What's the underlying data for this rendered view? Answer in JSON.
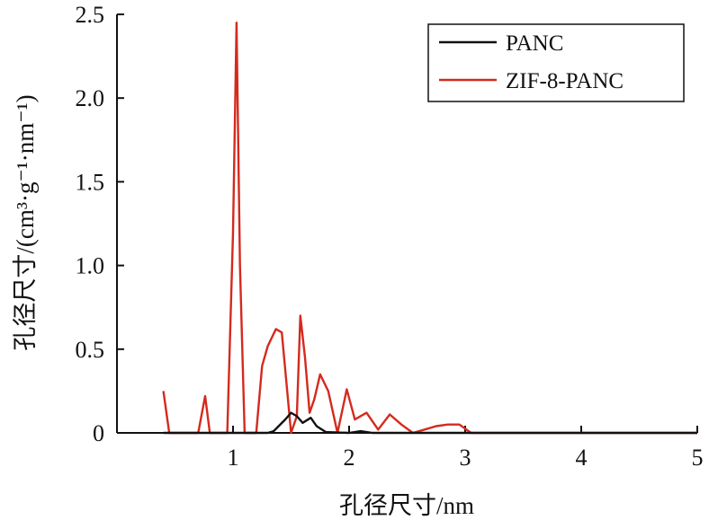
{
  "chart_data": {
    "type": "line",
    "xlabel": "孔径尺寸/nm",
    "ylabel": "孔径尺寸/(cm³·g⁻¹·nm⁻¹)",
    "xlim": [
      0,
      5
    ],
    "ylim": [
      0,
      2.5
    ],
    "x_ticks": [
      "1",
      "2",
      "3",
      "4",
      "5"
    ],
    "y_ticks": [
      "0",
      "0.5",
      "1.0",
      "1.5",
      "2.0",
      "2.5"
    ],
    "grid": false,
    "legend_position": "top-right",
    "series": [
      {
        "name": "PANC",
        "color": "#111111",
        "x": [
          0.4,
          1.3,
          1.35,
          1.45,
          1.5,
          1.55,
          1.6,
          1.67,
          1.72,
          1.8,
          2.0,
          2.1,
          2.2,
          3.0,
          5.0
        ],
        "y": [
          0,
          0,
          0.01,
          0.08,
          0.12,
          0.1,
          0.06,
          0.09,
          0.04,
          0.005,
          0,
          0.01,
          0,
          0,
          0
        ]
      },
      {
        "name": "ZIF-8-PANC",
        "color": "#d42a1e",
        "x": [
          0.4,
          0.45,
          0.7,
          0.76,
          0.8,
          0.95,
          1.0,
          1.03,
          1.06,
          1.1,
          1.2,
          1.25,
          1.3,
          1.37,
          1.42,
          1.5,
          1.55,
          1.58,
          1.62,
          1.66,
          1.7,
          1.75,
          1.82,
          1.9,
          1.98,
          2.05,
          2.15,
          2.25,
          2.35,
          2.45,
          2.55,
          2.65,
          2.75,
          2.85,
          2.95,
          3.05,
          3.5,
          5.0
        ],
        "y": [
          0.25,
          0,
          0,
          0.22,
          0,
          0,
          1.2,
          2.45,
          1.0,
          0,
          0,
          0.4,
          0.52,
          0.62,
          0.6,
          0,
          0.1,
          0.7,
          0.45,
          0.12,
          0.2,
          0.35,
          0.25,
          0,
          0.26,
          0.08,
          0.12,
          0.02,
          0.11,
          0.05,
          0,
          0.02,
          0.04,
          0.05,
          0.05,
          0,
          0,
          0
        ]
      }
    ]
  }
}
